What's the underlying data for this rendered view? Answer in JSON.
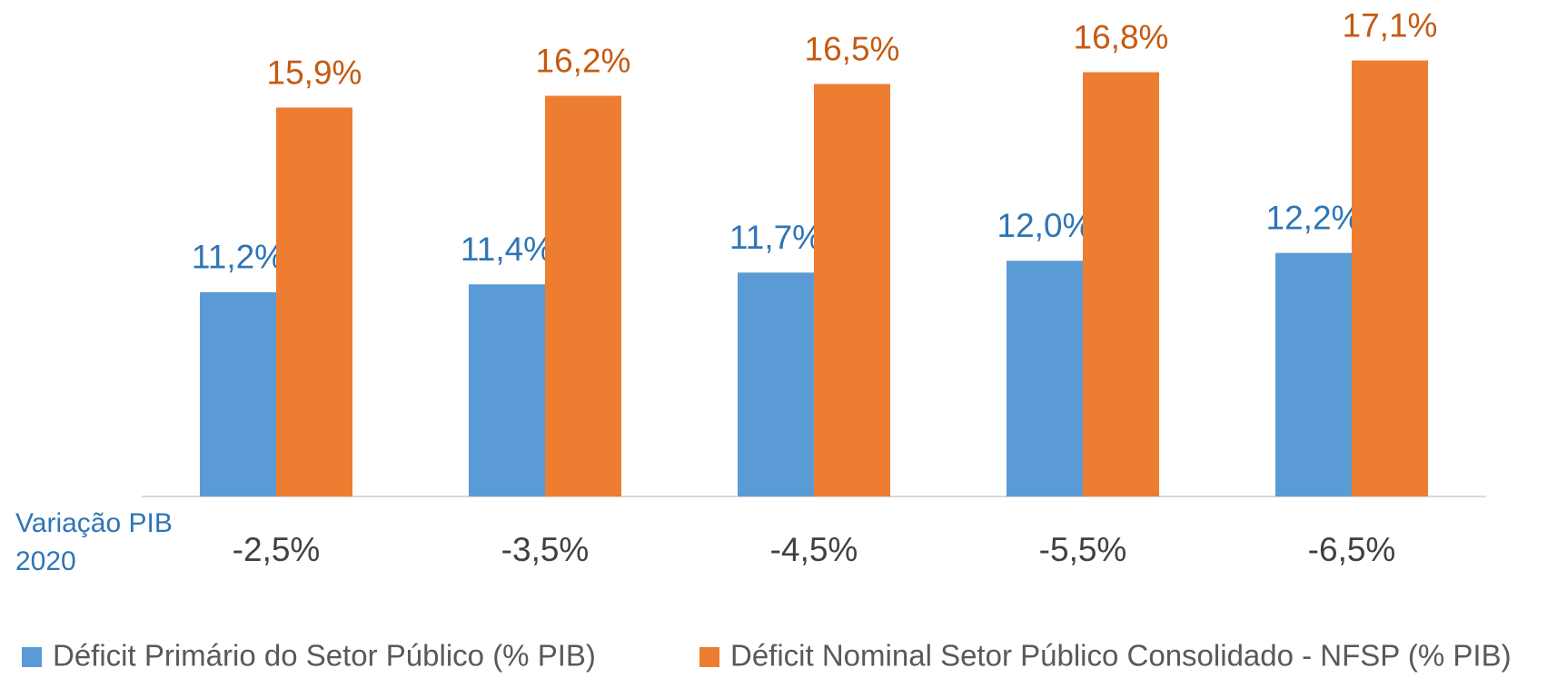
{
  "chart_data": {
    "type": "bar",
    "x_label_lines": [
      "Variação PIB",
      "2020"
    ],
    "categories": [
      "-2,5%",
      "-3,5%",
      "-4,5%",
      "-5,5%",
      "-6,5%"
    ],
    "series": [
      {
        "name": "Déficit Primário do Setor Público (% PIB)",
        "color": "#5b9bd5",
        "label_color": "#2e75b6",
        "values": [
          11.2,
          11.4,
          11.7,
          12.0,
          12.2
        ],
        "value_labels": [
          "11,2%",
          "11,4%",
          "11,7%",
          "12,0%",
          "12,2%"
        ]
      },
      {
        "name": "Déficit Nominal Setor Público Consolidado - NFSP (% PIB)",
        "color": "#ed7d31",
        "label_color": "#c55a11",
        "values": [
          15.9,
          16.2,
          16.5,
          16.8,
          17.1
        ],
        "value_labels": [
          "15,9%",
          "16,2%",
          "16,5%",
          "16,8%",
          "17,1%"
        ]
      }
    ],
    "ylim": [
      6,
      18.5
    ],
    "legend": "bottom"
  }
}
